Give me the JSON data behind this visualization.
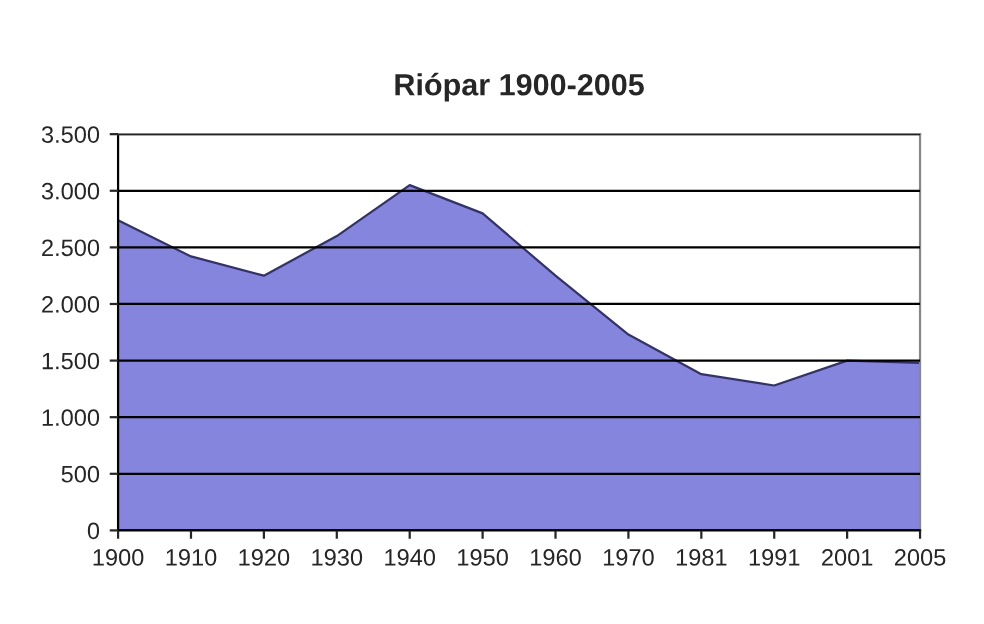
{
  "chart_data": {
    "type": "area",
    "title": "Riópar 1900-2005",
    "categories": [
      "1900",
      "1910",
      "1920",
      "1930",
      "1940",
      "1950",
      "1960",
      "1970",
      "1981",
      "1991",
      "2001",
      "2005"
    ],
    "values": [
      2740,
      2420,
      2250,
      2600,
      3050,
      2800,
      2250,
      1730,
      1380,
      1280,
      1500,
      1480
    ],
    "color": "#8585dd",
    "ylim": [
      0,
      3500
    ],
    "yticks": [
      0,
      500,
      {
        "value": 1000,
        "label": "1.000"
      },
      {
        "value": 1500,
        "label": "1.500"
      },
      {
        "value": 2000,
        "label": "2.000"
      },
      {
        "value": 2500,
        "label": "2.500"
      },
      {
        "value": 3000,
        "label": "3.000"
      },
      {
        "value": 3500,
        "label": "3.500"
      }
    ],
    "grid": "y"
  }
}
